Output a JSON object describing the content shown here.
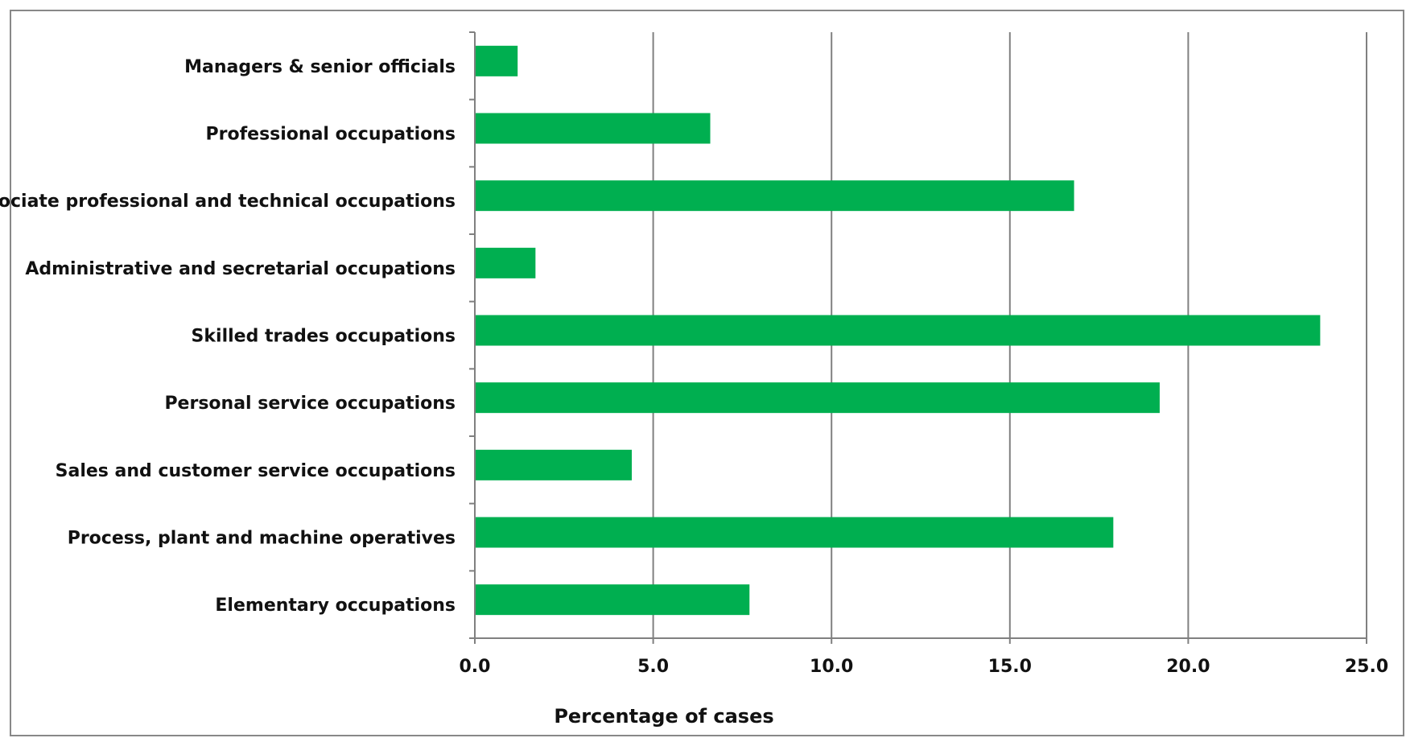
{
  "chart_data": {
    "type": "bar",
    "orientation": "horizontal",
    "categories": [
      "Managers & senior officials",
      "Professional occupations",
      "Associate professional and technical occupations",
      "Administrative and secretarial occupations",
      "Skilled trades occupations",
      "Personal service occupations",
      "Sales and customer service occupations",
      "Process, plant and machine operatives",
      "Elementary occupations"
    ],
    "values": [
      1.2,
      6.6,
      16.8,
      1.7,
      23.7,
      19.2,
      4.4,
      17.9,
      7.7
    ],
    "xlabel": "Percentage of cases",
    "ylabel": "",
    "xlim": [
      0,
      25
    ],
    "xticks": [
      "0.0",
      "5.0",
      "10.0",
      "15.0",
      "20.0",
      "25.0"
    ],
    "grid": "vertical",
    "legend": "none",
    "colors": {
      "bar": "#00AF50",
      "grid": "#808080",
      "axis": "#808080"
    }
  }
}
